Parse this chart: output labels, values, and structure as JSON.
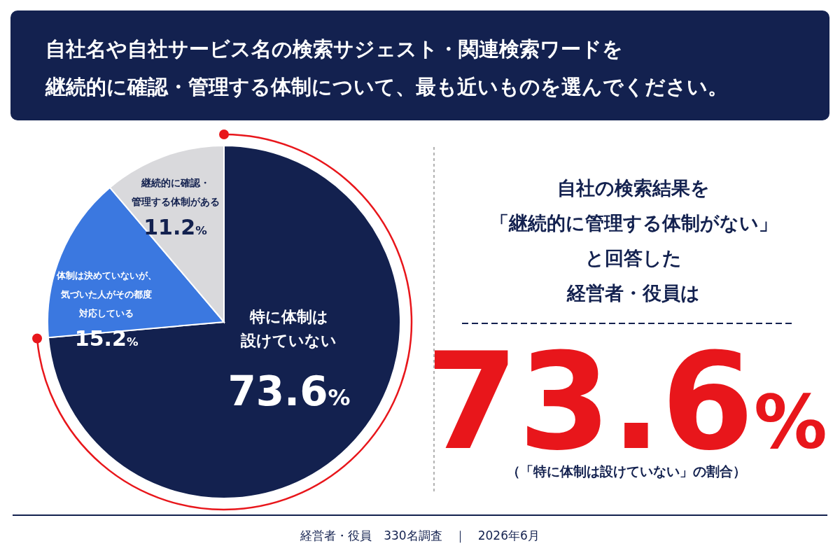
{
  "chart_data": {
    "type": "pie",
    "title": "自社名や自社サービス名の検索サジェスト・関連検索ワードを継続的に確認・管理する体制について、最も近いものを選んでください。",
    "categories": [
      "特に体制は設けていない",
      "体制は決めていないが、気づいた人がその都度対応している",
      "継続的に確認・管理する体制がある"
    ],
    "values": [
      73.6,
      15.2,
      11.2
    ],
    "colors": [
      "#13214f",
      "#3b78e0",
      "#d9d9dc"
    ],
    "value_labels": [
      "73.6%",
      "15.2%",
      "11.2%"
    ],
    "annotations": [
      "自社の検索結果を「継続的に管理する体制がない」と回答した経営者・役員は",
      "73.6%",
      "（「特に体制は設けていない」の割合）",
      "経営者・役員　330名調査　｜　2026年6月"
    ]
  }
}
